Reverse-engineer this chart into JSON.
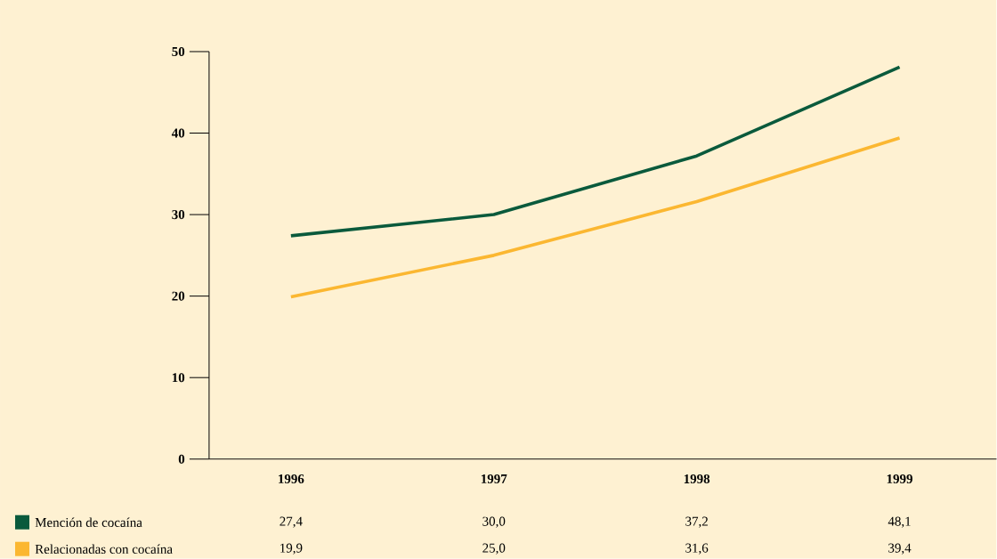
{
  "chart_data": {
    "type": "line",
    "categories": [
      "1996",
      "1997",
      "1998",
      "1999"
    ],
    "series": [
      {
        "name": "Mención de cocaína",
        "color": "#0a5a3c",
        "values": [
          27.4,
          30.0,
          37.2,
          48.1
        ],
        "value_labels": [
          "27,4",
          "30,0",
          "37,2",
          "48,1"
        ]
      },
      {
        "name": "Relacionadas con cocaína",
        "color": "#fbb731",
        "values": [
          19.9,
          25.0,
          31.6,
          39.4
        ],
        "value_labels": [
          "19,9",
          "25,0",
          "31,6",
          "39,4"
        ]
      }
    ],
    "ylim": [
      0,
      50
    ],
    "yticks": [
      0,
      10,
      20,
      30,
      40,
      50
    ],
    "grid": false,
    "legend": "bottom",
    "marker": "none",
    "line_style": "solid"
  }
}
